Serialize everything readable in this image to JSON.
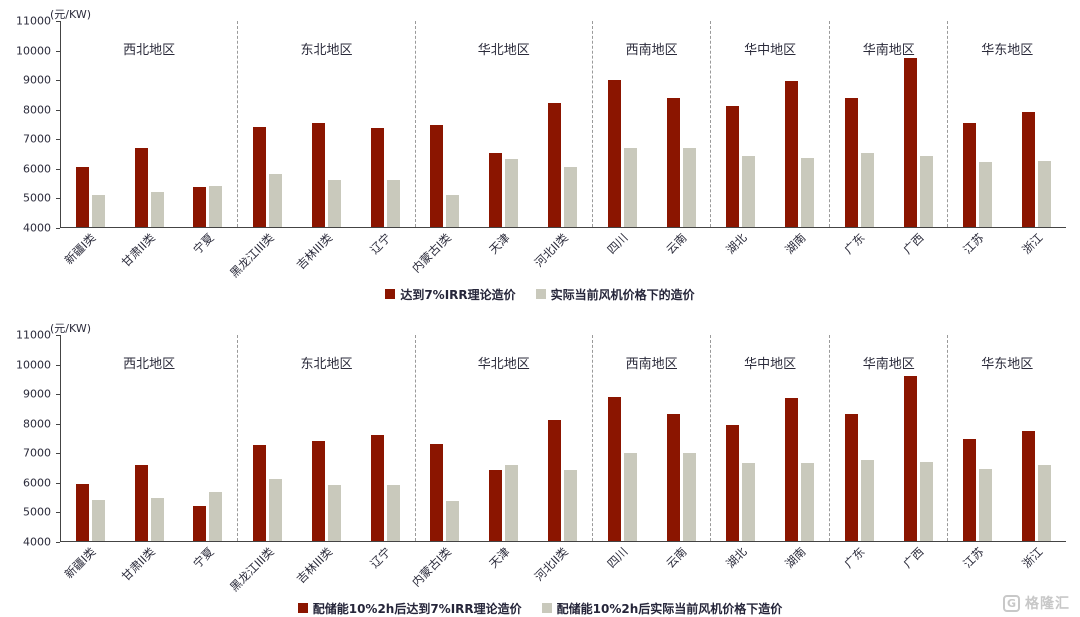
{
  "watermark": {
    "brand": "格隆汇",
    "logo_letter": "G"
  },
  "chart_data": [
    {
      "type": "bar",
      "unit_label": "(元/KW)",
      "ylim": [
        4000,
        11000
      ],
      "y_ticks": [
        4000,
        5000,
        6000,
        7000,
        8000,
        9000,
        10000,
        11000
      ],
      "grid": false,
      "legend_position": "bottom",
      "regions": [
        {
          "name": "西北地区",
          "categories": [
            "新疆I类",
            "甘肃II类",
            "宁夏"
          ]
        },
        {
          "name": "东北地区",
          "categories": [
            "黑龙江III类",
            "吉林III类",
            "辽宁"
          ]
        },
        {
          "name": "华北地区",
          "categories": [
            "内蒙古I类",
            "天津",
            "河北II类"
          ]
        },
        {
          "name": "西南地区",
          "categories": [
            "四川",
            "云南"
          ]
        },
        {
          "name": "华中地区",
          "categories": [
            "湖北",
            "湖南"
          ]
        },
        {
          "name": "华南地区",
          "categories": [
            "广东",
            "广西"
          ]
        },
        {
          "name": "华东地区",
          "categories": [
            "江苏",
            "浙江"
          ]
        }
      ],
      "categories": [
        "新疆I类",
        "甘肃II类",
        "宁夏",
        "黑龙江III类",
        "吉林III类",
        "辽宁",
        "内蒙古I类",
        "天津",
        "河北II类",
        "四川",
        "云南",
        "湖北",
        "湖南",
        "广东",
        "广西",
        "江苏",
        "浙江"
      ],
      "series": [
        {
          "name": "达到7%IRR理论造价",
          "color": "#8B1500",
          "values": [
            6050,
            6700,
            5350,
            7400,
            7550,
            7350,
            7450,
            6500,
            8200,
            9000,
            8400,
            8100,
            8950,
            8400,
            9750,
            7550,
            7900
          ]
        },
        {
          "name": "实际当前风机价格下的造价",
          "color": "#C9C9BC",
          "values": [
            5100,
            5200,
            5400,
            5800,
            5600,
            5600,
            5100,
            6300,
            6050,
            6700,
            6700,
            6400,
            6350,
            6500,
            6400,
            6200,
            6250
          ]
        }
      ]
    },
    {
      "type": "bar",
      "unit_label": "(元/KW)",
      "ylim": [
        4000,
        11000
      ],
      "y_ticks": [
        4000,
        5000,
        6000,
        7000,
        8000,
        9000,
        10000,
        11000
      ],
      "grid": false,
      "legend_position": "bottom",
      "regions": [
        {
          "name": "西北地区",
          "categories": [
            "新疆I类",
            "甘肃II类",
            "宁夏"
          ]
        },
        {
          "name": "东北地区",
          "categories": [
            "黑龙江III类",
            "吉林III类",
            "辽宁"
          ]
        },
        {
          "name": "华北地区",
          "categories": [
            "内蒙古I类",
            "天津",
            "河北II类"
          ]
        },
        {
          "name": "西南地区",
          "categories": [
            "四川",
            "云南"
          ]
        },
        {
          "name": "华中地区",
          "categories": [
            "湖北",
            "湖南"
          ]
        },
        {
          "name": "华南地区",
          "categories": [
            "广东",
            "广西"
          ]
        },
        {
          "name": "华东地区",
          "categories": [
            "江苏",
            "浙江"
          ]
        }
      ],
      "categories": [
        "新疆I类",
        "甘肃II类",
        "宁夏",
        "黑龙江III类",
        "吉林III类",
        "辽宁",
        "内蒙古I类",
        "天津",
        "河北II类",
        "四川",
        "云南",
        "湖北",
        "湖南",
        "广东",
        "广西",
        "江苏",
        "浙江"
      ],
      "series": [
        {
          "name": "配储能10%2h后达到7%IRR理论造价",
          "color": "#8B1500",
          "values": [
            5950,
            6600,
            5200,
            7250,
            7400,
            7600,
            7300,
            6400,
            8100,
            8900,
            8300,
            7950,
            8850,
            8300,
            9600,
            7450,
            7750
          ]
        },
        {
          "name": "配储能10%2h后实际当前风机价格下造价",
          "color": "#C9C9BC",
          "values": [
            5400,
            5450,
            5650,
            6100,
            5900,
            5900,
            5350,
            6600,
            6400,
            7000,
            7000,
            6650,
            6650,
            6750,
            6700,
            6450,
            6600
          ]
        }
      ]
    }
  ]
}
